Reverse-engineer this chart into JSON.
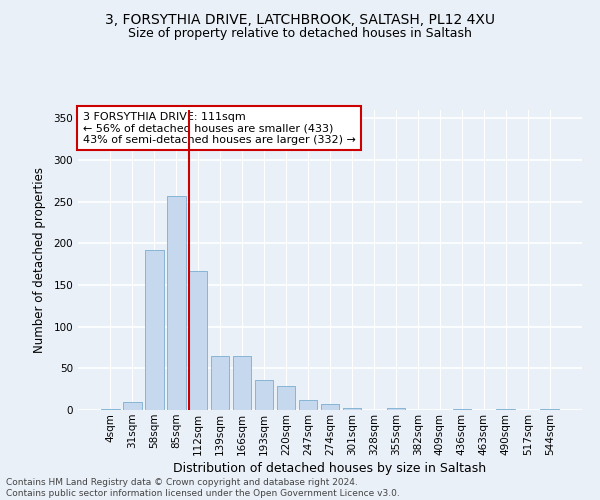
{
  "title1": "3, FORSYTHIA DRIVE, LATCHBROOK, SALTASH, PL12 4XU",
  "title2": "Size of property relative to detached houses in Saltash",
  "xlabel": "Distribution of detached houses by size in Saltash",
  "ylabel": "Number of detached properties",
  "footnote": "Contains HM Land Registry data © Crown copyright and database right 2024.\nContains public sector information licensed under the Open Government Licence v3.0.",
  "bar_labels": [
    "4sqm",
    "31sqm",
    "58sqm",
    "85sqm",
    "112sqm",
    "139sqm",
    "166sqm",
    "193sqm",
    "220sqm",
    "247sqm",
    "274sqm",
    "301sqm",
    "328sqm",
    "355sqm",
    "382sqm",
    "409sqm",
    "436sqm",
    "463sqm",
    "490sqm",
    "517sqm",
    "544sqm"
  ],
  "bar_values": [
    1,
    10,
    192,
    257,
    167,
    65,
    65,
    36,
    29,
    12,
    7,
    3,
    0,
    3,
    0,
    0,
    1,
    0,
    1,
    0,
    1
  ],
  "bar_color": "#c5d8ed",
  "bar_edgecolor": "#7aaed0",
  "vline_x_index": 4,
  "vline_color": "#cc0000",
  "annotation_text": "3 FORSYTHIA DRIVE: 111sqm\n← 56% of detached houses are smaller (433)\n43% of semi-detached houses are larger (332) →",
  "annotation_box_facecolor": "#ffffff",
  "annotation_box_edgecolor": "#cc0000",
  "ylim": [
    0,
    360
  ],
  "yticks": [
    0,
    50,
    100,
    150,
    200,
    250,
    300,
    350
  ],
  "background_color": "#eaf0f8",
  "plot_bg_color": "#eaf0f8",
  "grid_color": "#ffffff",
  "title1_fontsize": 10,
  "title2_fontsize": 9,
  "xlabel_fontsize": 9,
  "ylabel_fontsize": 8.5,
  "tick_fontsize": 7.5,
  "annotation_fontsize": 8,
  "footnote_fontsize": 6.5
}
